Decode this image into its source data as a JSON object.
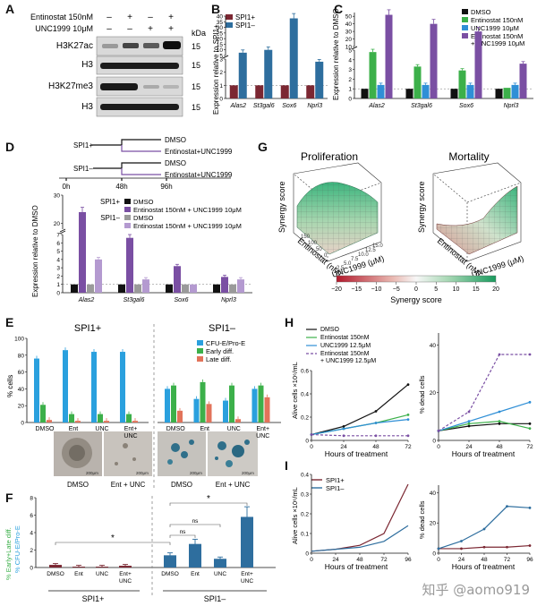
{
  "panel_labels": {
    "A": "A",
    "B": "B",
    "C": "C",
    "D": "D",
    "E": "E",
    "F": "F",
    "G": "G",
    "H": "H",
    "I": "I"
  },
  "colors": {
    "dmso": "#111111",
    "ent": "#3cb04a",
    "unc": "#2f8fd6",
    "combo": "#7a4fa3",
    "combo_light": "#b49ad0",
    "ent_pale": "#9a9a9a",
    "spi_plus": "#7b2732",
    "spi_minus": "#2e6e9e",
    "early": "#3cb04a",
    "late": "#e2735a",
    "cfu": "#2aa0de"
  },
  "panel_a": {
    "row_labels": [
      "Entinostat 150nM",
      "UNC1999 10μM"
    ],
    "signs_ent": [
      "–",
      "+",
      "–",
      "+"
    ],
    "signs_unc": [
      "–",
      "–",
      "+",
      "+"
    ],
    "kda": "kDa",
    "blots": [
      {
        "name": "H3K27ac",
        "mw": "15"
      },
      {
        "name": "H3",
        "mw": "15"
      },
      {
        "name": "H3K27me3",
        "mw": "15"
      },
      {
        "name": "H3",
        "mw": "15"
      }
    ]
  },
  "panel_b": {
    "legend": [
      "SPI1+",
      "SPI1–"
    ],
    "ylabel": "Expression relative to SPI1+",
    "genes": [
      "Alas2",
      "St3gal6",
      "Sox6",
      "Nprl3"
    ],
    "yticks_low": [
      "0",
      "1",
      "2",
      "3"
    ],
    "yticks_high": [
      "5",
      "10",
      "15",
      "20",
      "25",
      "30",
      "35",
      "40"
    ]
  },
  "panel_c": {
    "legend": [
      "DMSO",
      "Entinostat 150nM",
      "UNC1999 10μM",
      "Entinostat 150nM",
      "+ UNC1999 10μM"
    ],
    "ylabel": "Expression relative to DMSO",
    "genes": [
      "Alas2",
      "St3gal6",
      "Sox6",
      "Nprl3"
    ],
    "yticks_low": [
      "0",
      "1",
      "2",
      "3",
      "4",
      "5"
    ],
    "yticks_high": [
      "10",
      "20",
      "30",
      "40",
      "50"
    ]
  },
  "panel_d": {
    "scheme": {
      "spi_plus": "SPI1+",
      "spi_minus": "SPI1–",
      "dmso": "DMSO",
      "combo": "Entinostat+UNC1999",
      "times": [
        "0h",
        "48h",
        "96h"
      ]
    },
    "legend_spi_plus": "SPI1+",
    "legend_spi_minus": "SPI1–",
    "legend_items": [
      "DMSO",
      "Entinostat 150nM + UNC1999 10μM",
      "DMSO",
      "Entinostat 150nM + UNC1999 10μM"
    ],
    "ylabel": "Expression relative to DMSO",
    "genes": [
      "Alas2",
      "St3gal6",
      "Sox6",
      "Nprl3"
    ],
    "yticks_low": [
      "0",
      "1",
      "2",
      "3",
      "4",
      "5",
      "6",
      "7"
    ],
    "yticks_high": [
      "20",
      "30"
    ]
  },
  "panel_e": {
    "title_left": "SPI1+",
    "title_right": "SPI1–",
    "ylabel": "% cells",
    "yticks": [
      "0",
      "20",
      "40",
      "60",
      "80",
      "100"
    ],
    "legend": [
      "CFU-E/Pro-E",
      "Early diff.",
      "Late diff."
    ],
    "groups": [
      "DMSO",
      "Ent",
      "UNC",
      "Ent + UNC"
    ],
    "img_labels": [
      "DMSO",
      "Ent + UNC",
      "DMSO",
      "Ent + UNC"
    ],
    "scale": "200μm"
  },
  "panel_f": {
    "ylabel_parts": [
      "% Early+Late diff.",
      "% CFU-E/Pro-E"
    ],
    "yticks": [
      "0",
      "2",
      "4",
      "6",
      "8"
    ],
    "groups": [
      "DMSO",
      "Ent",
      "UNC",
      "Ent+\nUNC",
      "DMSO",
      "Ent",
      "UNC",
      "Ent+\nUNC"
    ],
    "group_labels": [
      "SPI1+",
      "SPI1–"
    ],
    "sig": [
      "*",
      "*",
      "ns",
      "ns"
    ]
  },
  "panel_g": {
    "titles": [
      "Proliferation",
      "Mortality"
    ],
    "zlabel": "Synergy score",
    "xlabel": "Entinostat (nM)",
    "ylabel": "UNC1999 (μM)",
    "colorbar_ticks": [
      "−20",
      "−15",
      "−10",
      "−5",
      "0",
      "5",
      "10",
      "15",
      "20"
    ],
    "colorbar_label": "Synergy score",
    "left_ticks": [
      "150",
      "100",
      "50",
      "0"
    ],
    "right_ticks": [
      "15.0",
      "12.5",
      "10.0",
      "7.5",
      "5.0",
      "2.5"
    ]
  },
  "panel_h": {
    "legend": [
      "DMSO",
      "Entinostat 150nM",
      "UNC1999 12.5μM",
      "Entinostat 150nM",
      "+ UNC1999 12.5μM"
    ],
    "ylabel_left": "Alive cells ×10⁶/mL",
    "ylabel_right": "% dead cells",
    "xlabel": "Hours of treatment",
    "xticks": [
      "0",
      "24",
      "48",
      "72"
    ],
    "yticks_left": [
      "0",
      "0.2",
      "0.4",
      "0.6"
    ],
    "yticks_right": [
      "0",
      "20",
      "40"
    ]
  },
  "panel_i": {
    "legend": [
      "SPI1+",
      "SPI1–"
    ],
    "ylabel_left": "Alive cells ×10⁶/mL",
    "ylabel_right": "% dead cells",
    "xlabel": "Hours of treatment",
    "xticks": [
      "0",
      "24",
      "48",
      "72",
      "96"
    ],
    "yticks_left": [
      "0",
      "0.1",
      "0.2",
      "0.3",
      "0.4"
    ],
    "yticks_right": [
      "0",
      "20",
      "40"
    ]
  },
  "chart_data": [
    {
      "type": "bar",
      "id": "B",
      "categories": [
        "Alas2",
        "St3gal6",
        "Sox6",
        "Nprl3"
      ],
      "series": [
        {
          "name": "SPI1+",
          "values": [
            1,
            1,
            1,
            1
          ]
        },
        {
          "name": "SPI1–",
          "values": [
            7.5,
            10,
            38,
            2.8
          ]
        }
      ]
    },
    {
      "type": "bar",
      "id": "C",
      "categories": [
        "Alas2",
        "St3gal6",
        "Sox6",
        "Nprl3"
      ],
      "series": [
        {
          "name": "DMSO",
          "values": [
            1,
            1,
            1,
            1
          ]
        },
        {
          "name": "Entinostat 150nM",
          "values": [
            4.8,
            3.3,
            2.9,
            1.1
          ]
        },
        {
          "name": "UNC1999 10μM",
          "values": [
            1.4,
            1.4,
            1.4,
            1.4
          ]
        },
        {
          "name": "Entinostat 150nM + UNC1999 10μM",
          "values": [
            52,
            40,
            30,
            3.6
          ]
        }
      ]
    },
    {
      "type": "bar",
      "id": "D",
      "categories": [
        "Alas2",
        "St3gal6",
        "Sox6",
        "Nprl3"
      ],
      "series": [
        {
          "name": "SPI1+ DMSO",
          "values": [
            1,
            1,
            1,
            1
          ]
        },
        {
          "name": "SPI1+ Ent+UNC",
          "values": [
            24,
            6.6,
            3.2,
            1.9
          ]
        },
        {
          "name": "SPI1– DMSO",
          "values": [
            1,
            1,
            1,
            1
          ]
        },
        {
          "name": "SPI1– Ent+UNC",
          "values": [
            4,
            1.6,
            1,
            1.6
          ]
        }
      ]
    },
    {
      "type": "bar",
      "id": "E",
      "categories": [
        "DMSO",
        "Ent",
        "UNC",
        "Ent + UNC",
        "DMSO",
        "Ent",
        "UNC",
        "Ent + UNC"
      ],
      "series": [
        {
          "name": "CFU-E/Pro-E",
          "values": [
            76,
            86,
            84,
            84,
            40,
            28,
            26,
            40
          ]
        },
        {
          "name": "Early diff.",
          "values": [
            21,
            10,
            10,
            10,
            44,
            48,
            44,
            44
          ]
        },
        {
          "name": "Late diff.",
          "values": [
            3,
            2,
            2,
            2,
            14,
            22,
            4,
            30
          ]
        }
      ]
    },
    {
      "type": "bar",
      "id": "F",
      "categories": [
        "DMSO",
        "Ent",
        "UNC",
        "Ent+UNC",
        "DMSO",
        "Ent",
        "UNC",
        "Ent+UNC"
      ],
      "values": [
        0.3,
        0.1,
        0.1,
        0.2,
        1.4,
        2.7,
        1.0,
        5.8
      ]
    },
    {
      "type": "line",
      "id": "H-left",
      "x": [
        0,
        24,
        48,
        72
      ],
      "series": [
        {
          "name": "DMSO",
          "values": [
            0.05,
            0.12,
            0.25,
            0.48
          ]
        },
        {
          "name": "Entinostat 150nM",
          "values": [
            0.05,
            0.1,
            0.15,
            0.22
          ]
        },
        {
          "name": "UNC1999 12.5μM",
          "values": [
            0.05,
            0.1,
            0.15,
            0.18
          ]
        },
        {
          "name": "Entinostat 150nM + UNC1999 12.5μM",
          "values": [
            0.05,
            0.04,
            0.04,
            0.04
          ]
        }
      ]
    },
    {
      "type": "line",
      "id": "H-right",
      "x": [
        0,
        24,
        48,
        72
      ],
      "series": [
        {
          "name": "DMSO",
          "values": [
            4,
            6,
            7,
            7
          ]
        },
        {
          "name": "Entinostat 150nM",
          "values": [
            4,
            7,
            8,
            5
          ]
        },
        {
          "name": "UNC1999 12.5μM",
          "values": [
            4,
            8,
            12,
            16
          ]
        },
        {
          "name": "Entinostat 150nM + UNC1999 12.5μM",
          "values": [
            4,
            12,
            36,
            36
          ]
        }
      ]
    },
    {
      "type": "line",
      "id": "I-left",
      "x": [
        0,
        24,
        48,
        72,
        96
      ],
      "series": [
        {
          "name": "SPI1+",
          "values": [
            0.01,
            0.02,
            0.04,
            0.1,
            0.35
          ]
        },
        {
          "name": "SPI1–",
          "values": [
            0.01,
            0.02,
            0.03,
            0.06,
            0.14
          ]
        }
      ]
    },
    {
      "type": "line",
      "id": "I-right",
      "x": [
        0,
        24,
        48,
        72,
        96
      ],
      "series": [
        {
          "name": "SPI1+",
          "values": [
            3,
            3,
            4,
            4,
            5
          ]
        },
        {
          "name": "SPI1–",
          "values": [
            3,
            8,
            16,
            31,
            30
          ]
        }
      ]
    }
  ],
  "watermark": "知乎 @aomo919"
}
